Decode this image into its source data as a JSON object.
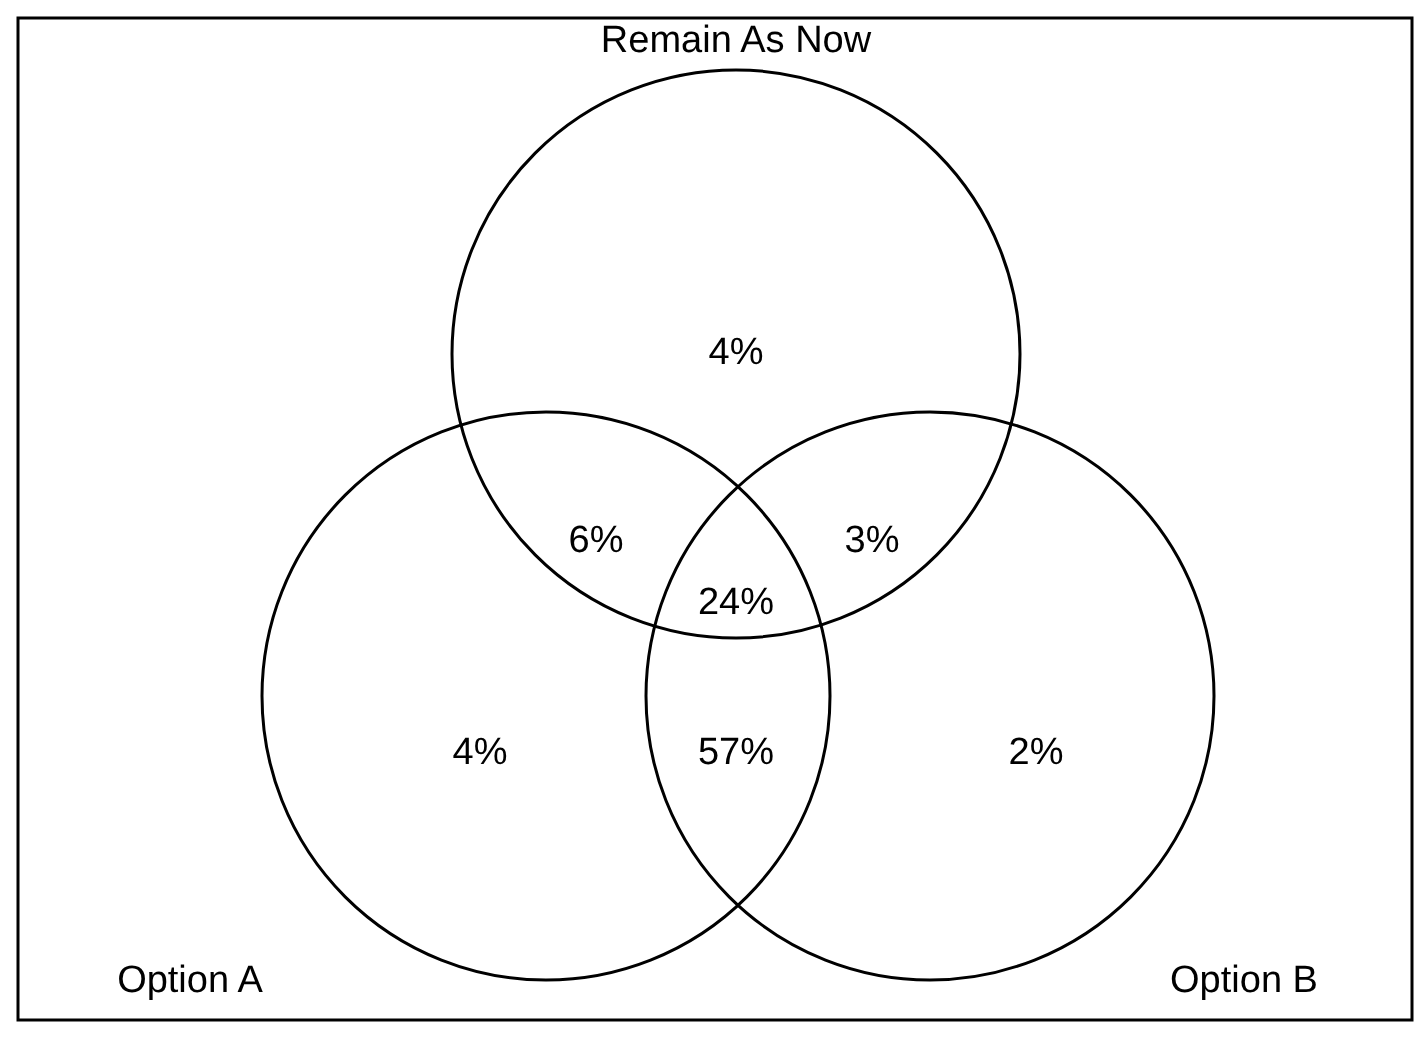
{
  "chart_data": {
    "type": "other",
    "categories": [
      null,
      null,
      null,
      null,
      null,
      null,
      null
    ],
    "values": [
      4,
      6,
      3,
      24,
      4,
      57,
      2
    ],
    "value_labels": [
      "4%",
      "6%",
      "3%",
      "24%",
      "4%",
      "57%",
      "2%"
    ],
    "annotations": [
      "Remain As Now",
      "Option A",
      "Option B"
    ]
  }
}
